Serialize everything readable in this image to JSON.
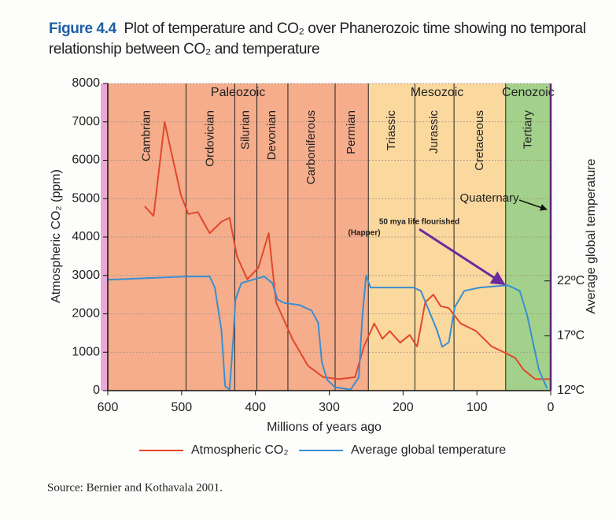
{
  "chart_data": {
    "type": "line",
    "figure_label": "Figure 4.4",
    "title": "Plot of temperature and CO₂ over Phanerozoic time showing no temporal relationship between CO₂ and temperature",
    "x_label": "Millions of years ago",
    "y_label": "Atmospheric CO₂ (ppm)",
    "y2_label": "Average global temperature",
    "source": "Source: Bernier and Kothavala 2001.",
    "xlim": [
      600,
      0
    ],
    "xticks": [
      600,
      500,
      400,
      300,
      200,
      100,
      0
    ],
    "ylim": [
      0,
      8000
    ],
    "yticks": [
      0,
      1000,
      2000,
      3000,
      4000,
      5000,
      6000,
      7000,
      8000
    ],
    "y2lim": [
      12,
      40
    ],
    "y2ticks": [
      {
        "value": 12,
        "label": "12ºC"
      },
      {
        "value": 17,
        "label": "17ºC"
      },
      {
        "value": 22,
        "label": "22ºC"
      }
    ],
    "grid": true,
    "eras": [
      {
        "name": "Paleozoic",
        "start": 600,
        "end": 247,
        "color": "#f5ad8c"
      },
      {
        "name": "Mesozoic",
        "start": 247,
        "end": 61,
        "color": "#fbd89e"
      },
      {
        "name": "Cenozoic",
        "start": 61,
        "end": 0,
        "color": "#a3d18b"
      }
    ],
    "periods": [
      {
        "name": "Cambrian",
        "start": 600,
        "end": 494
      },
      {
        "name": "Ordovician",
        "start": 494,
        "end": 428
      },
      {
        "name": "Silurian",
        "start": 428,
        "end": 398
      },
      {
        "name": "Devonian",
        "start": 398,
        "end": 356
      },
      {
        "name": "Carboniferous",
        "start": 356,
        "end": 292
      },
      {
        "name": "Permian",
        "start": 292,
        "end": 247
      },
      {
        "name": "Triassic",
        "start": 247,
        "end": 184
      },
      {
        "name": "Jurassic",
        "start": 184,
        "end": 131
      },
      {
        "name": "Cretaceous",
        "start": 131,
        "end": 61
      },
      {
        "name": "Tertiary",
        "start": 61,
        "end": 0
      }
    ],
    "annotations": [
      {
        "text": "50 mya life flourished"
      },
      {
        "text": "(Happer)"
      },
      {
        "text": "Quaternary"
      }
    ],
    "series": [
      {
        "name": "Atmospheric CO₂",
        "color": "#e2472b",
        "x": [
          550,
          538,
          523,
          515,
          501,
          491,
          478,
          462,
          446,
          435,
          425,
          411,
          396,
          382,
          377,
          372,
          350,
          329,
          308,
          287,
          265,
          253,
          239,
          228,
          218,
          204,
          191,
          181,
          170,
          159,
          149,
          138,
          122,
          101,
          80,
          58,
          48,
          37,
          21,
          0
        ],
        "values": [
          4800,
          4550,
          7000,
          6300,
          5100,
          4600,
          4650,
          4100,
          4400,
          4500,
          3500,
          2900,
          3200,
          4100,
          3200,
          2300,
          1350,
          650,
          350,
          300,
          350,
          1150,
          1750,
          1350,
          1550,
          1250,
          1450,
          1150,
          2300,
          2500,
          2200,
          2150,
          1750,
          1550,
          1150,
          950,
          850,
          550,
          300,
          300
        ]
      },
      {
        "name": "Average global temperature",
        "color": "#3a8fd0",
        "axis": "y2",
        "x": [
          600,
          494,
          462,
          455,
          446,
          441,
          435,
          430,
          427,
          419,
          404,
          388,
          377,
          370,
          361,
          340,
          324,
          315,
          310,
          303,
          292,
          271,
          260,
          255,
          250,
          244,
          223,
          186,
          176,
          165,
          154,
          147,
          138,
          130,
          117,
          96,
          58,
          42,
          32,
          16,
          5
        ],
        "values": [
          22.1,
          22.4,
          22.4,
          21.4,
          17.5,
          12.4,
          12.1,
          16.7,
          20.3,
          21.8,
          22.1,
          22.4,
          21.8,
          20.3,
          20.0,
          19.8,
          19.3,
          18.2,
          14.6,
          13.0,
          12.3,
          12.1,
          13.2,
          18.9,
          22.5,
          21.4,
          21.4,
          21.4,
          21.1,
          19.3,
          17.5,
          16.0,
          16.4,
          19.6,
          21.1,
          21.4,
          21.6,
          21.1,
          18.9,
          13.9,
          12.2
        ]
      }
    ]
  }
}
